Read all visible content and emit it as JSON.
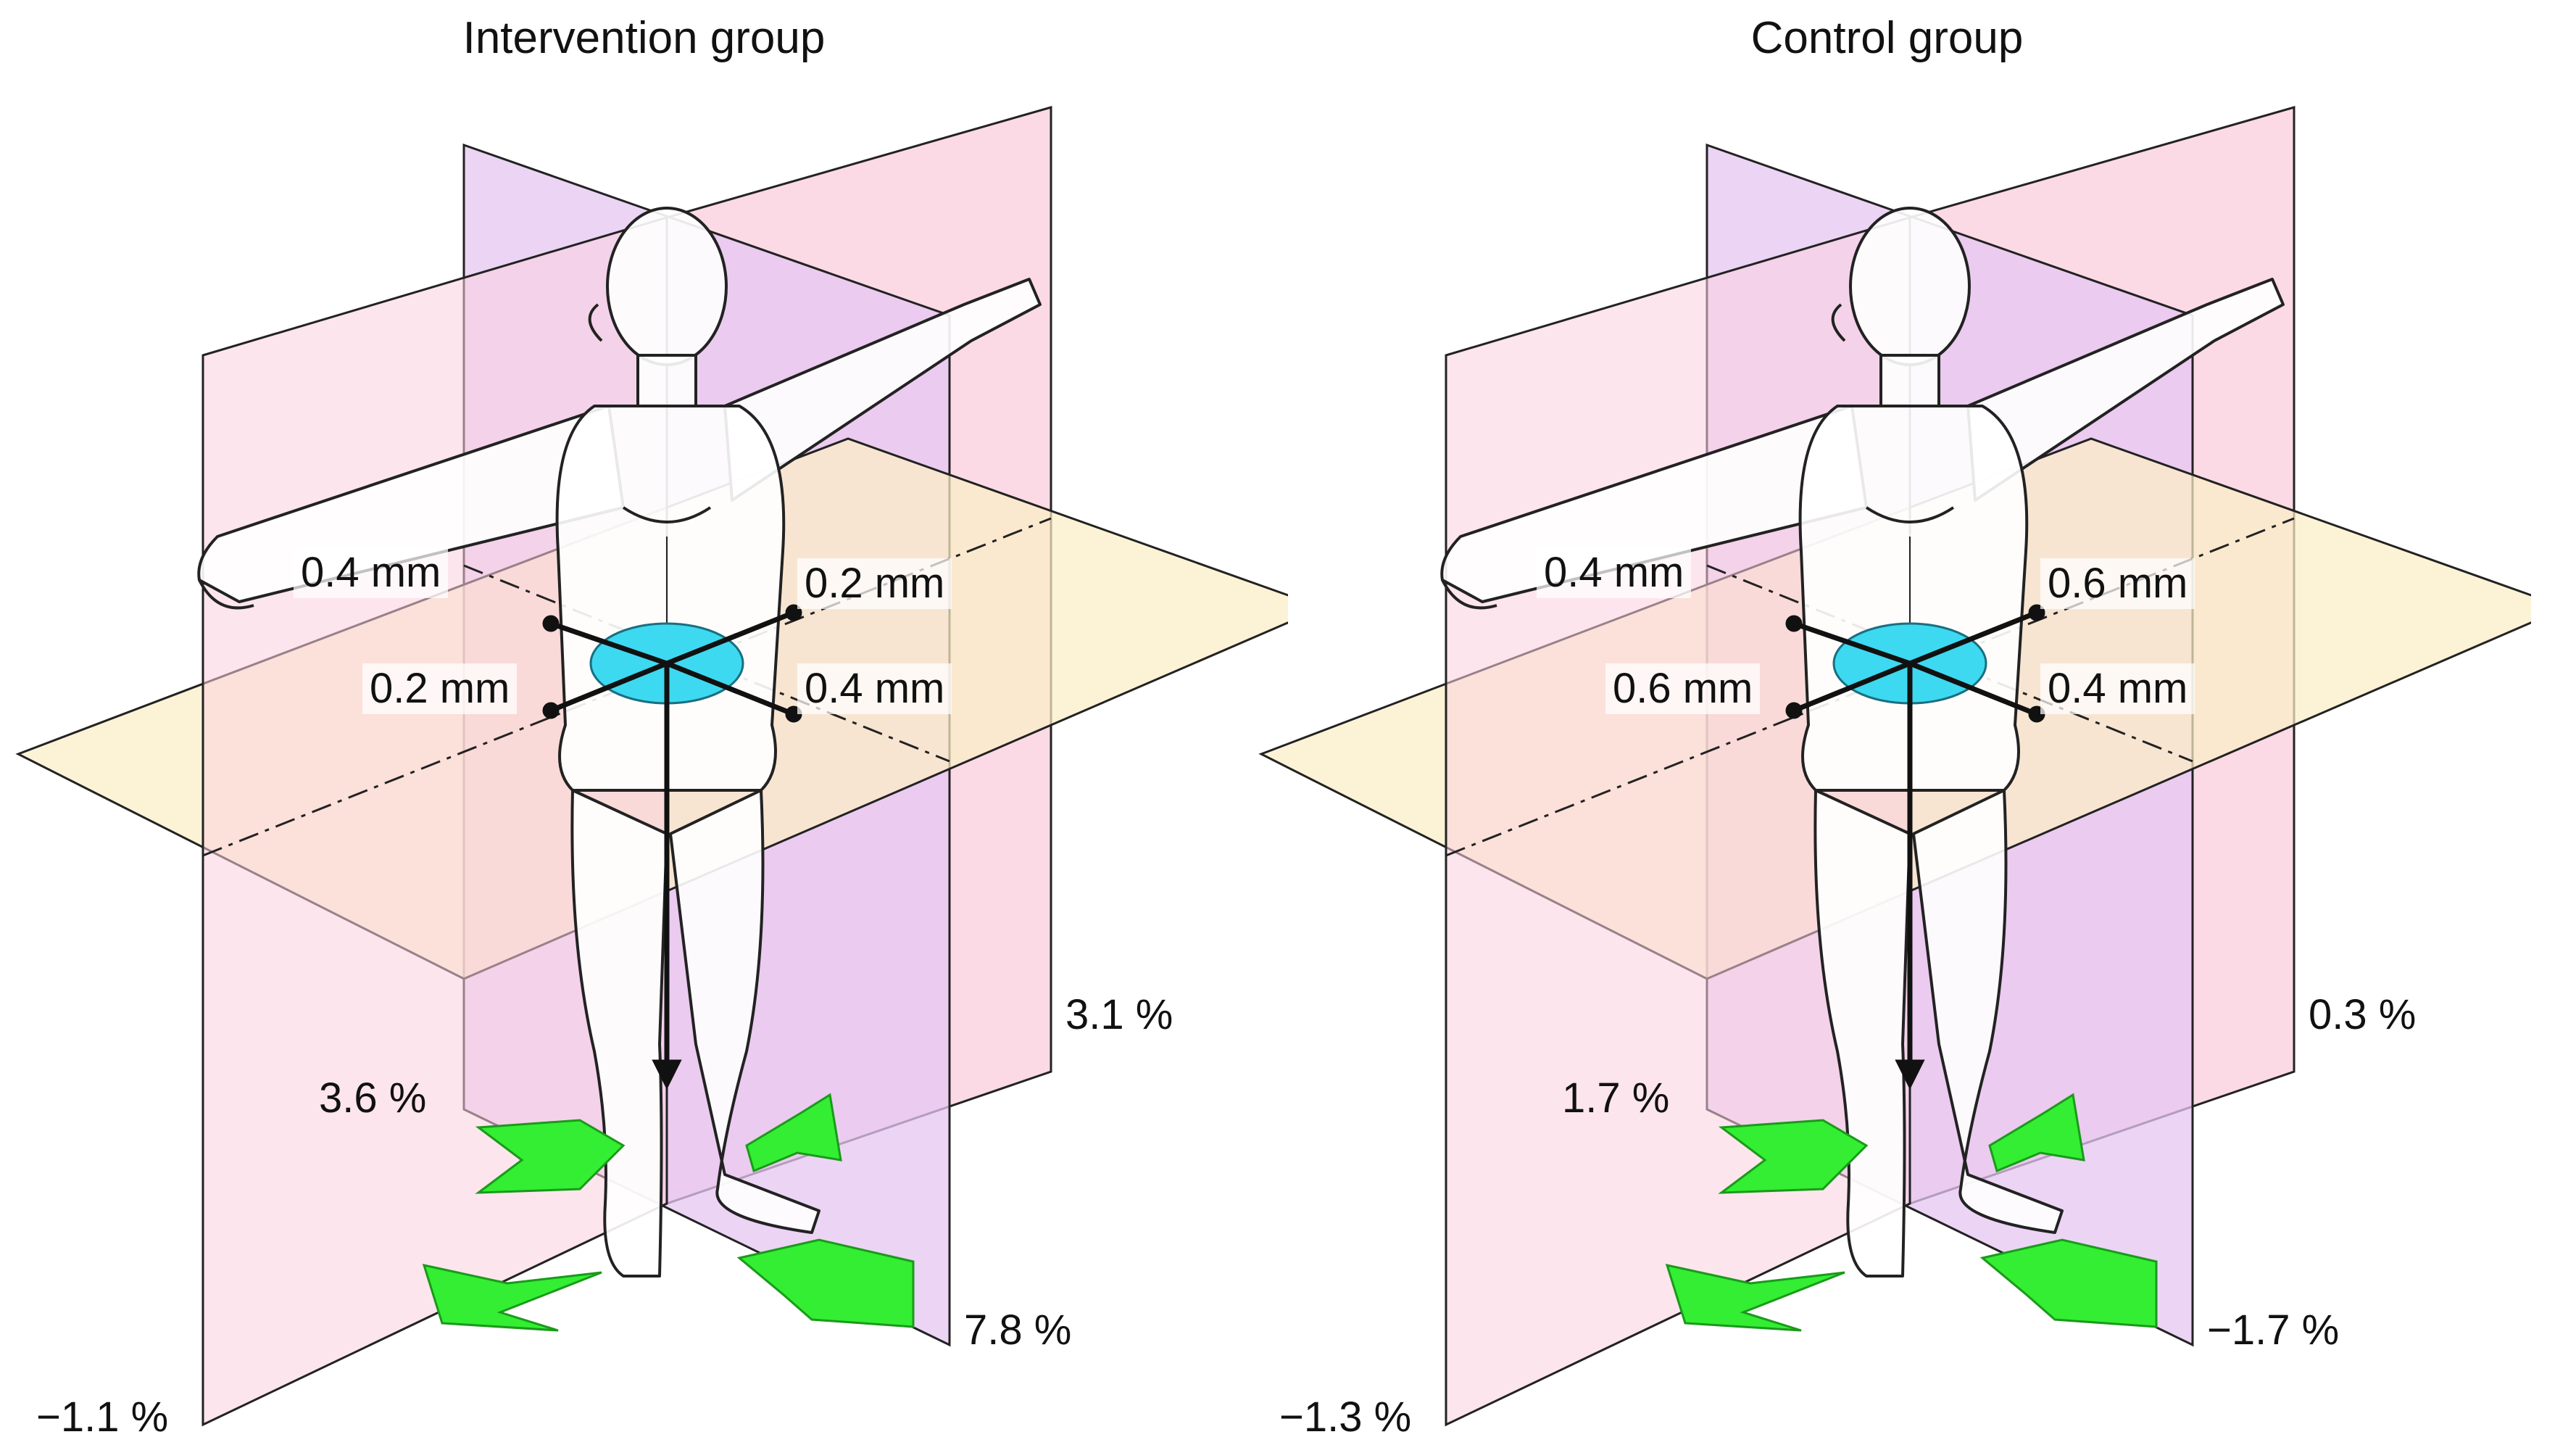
{
  "panels": [
    {
      "title": "Intervention group",
      "arrows": {
        "left_back": "0.4 mm",
        "right_back": "0.2 mm",
        "left_front": "0.2 mm",
        "right_front": "0.4 mm"
      },
      "percent": {
        "right_upper": "3.1 %",
        "left_upper": "3.6 %",
        "right_lower": "7.8 %",
        "left_lower": "−1.1 %"
      }
    },
    {
      "title": "Control group",
      "arrows": {
        "left_back": "0.4 mm",
        "right_back": "0.6 mm",
        "left_front": "0.6 mm",
        "right_front": "0.4 mm"
      },
      "percent": {
        "right_upper": "0.3 %",
        "left_upper": "1.7 %",
        "right_lower": "−1.7 %",
        "left_lower": "−1.3 %"
      }
    }
  ],
  "colors": {
    "sagittal_plane": "#e9d3f7",
    "frontal_plane": "#fbd4e0",
    "transverse_plane": "#fbf0c9",
    "pelvis_disc": "#3dd9f0",
    "shift_arrows": "#33ee33",
    "outline": "#111111"
  },
  "icons": [
    "human-figure-icon",
    "pelvis-disc-icon",
    "green-shift-arrow-icon"
  ]
}
